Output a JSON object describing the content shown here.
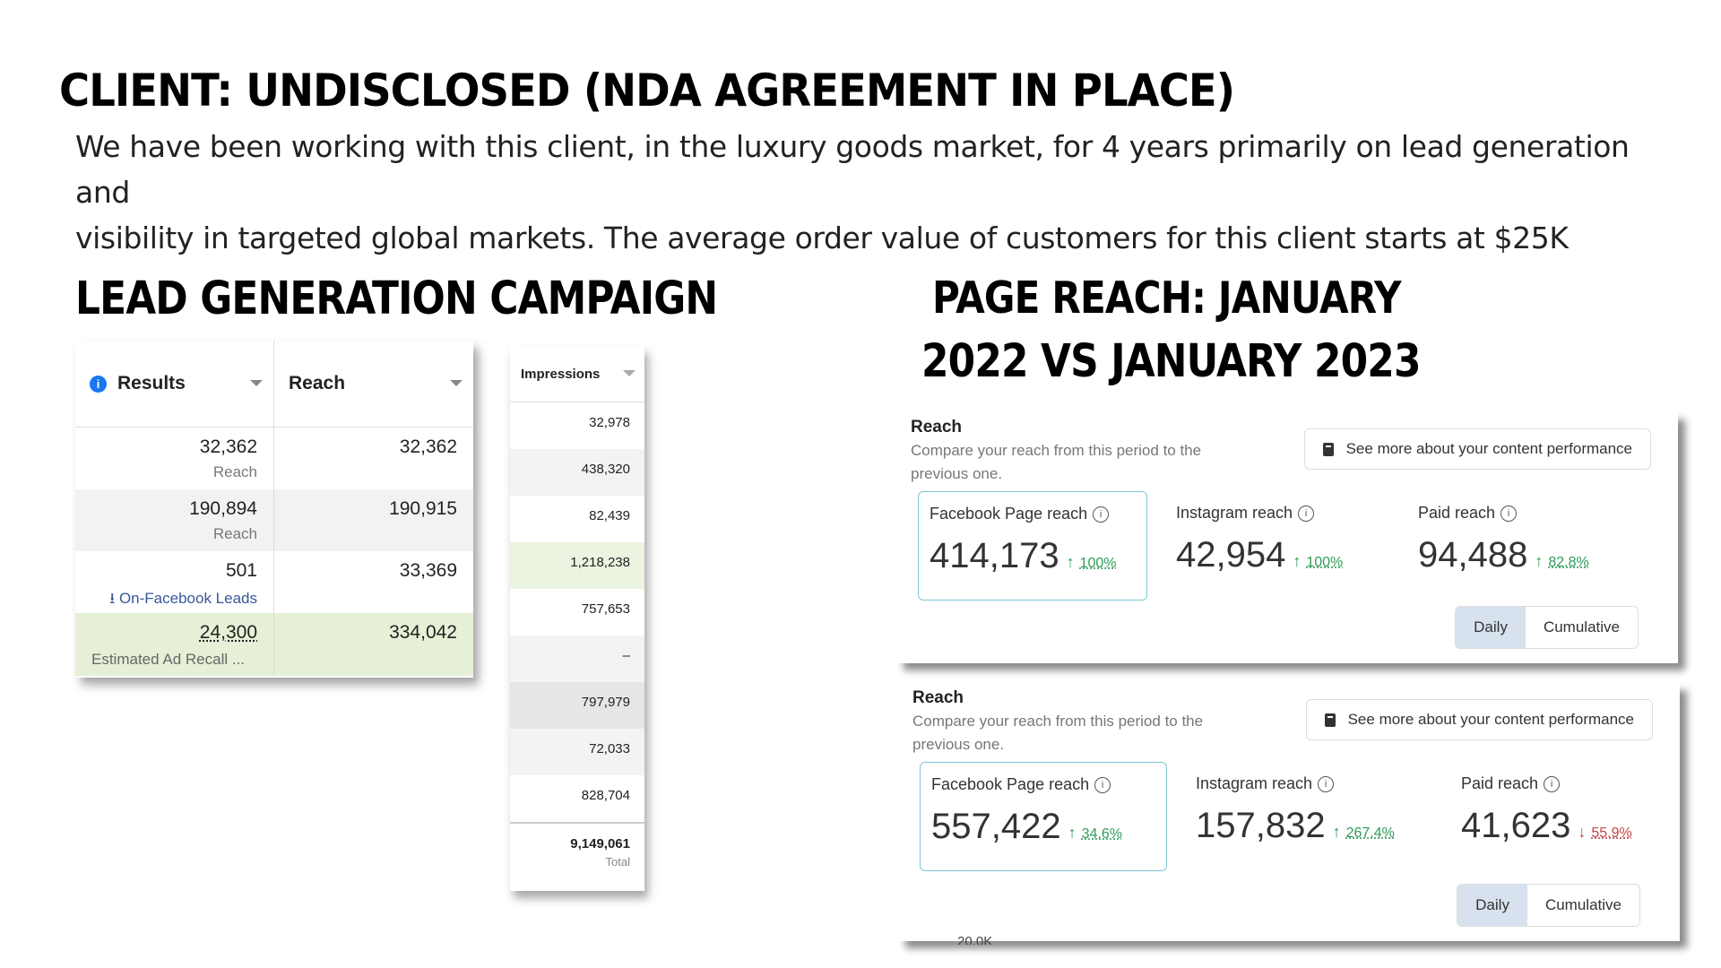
{
  "headings": {
    "client": "CLIENT: UNDISCLOSED (NDA AGREEMENT IN PLACE)",
    "lead": "LEAD GENERATION CAMPAIGN",
    "reach_line1": "PAGE REACH: JANUARY",
    "reach_line2": "2022 VS JANUARY 2023"
  },
  "intro": {
    "line1": "We have been working with this client, in the luxury goods market, for 4 years primarily on lead generation and",
    "line2": "visibility in targeted global markets.  The average order value of customers for this client starts at $25K"
  },
  "results_table": {
    "headers": {
      "results": "Results",
      "reach": "Reach"
    },
    "rows": [
      {
        "result": "32,362",
        "sub": "Reach",
        "reach": "32,362"
      },
      {
        "result": "190,894",
        "sub": "Reach",
        "reach": "190,915"
      },
      {
        "result": "501",
        "sub": "On-Facebook Leads",
        "reach": "33,369"
      },
      {
        "result": "24,300",
        "sub": "Estimated Ad Recall ...",
        "reach": "334,042"
      }
    ]
  },
  "impressions": {
    "header": "Impressions",
    "values": [
      "32,978",
      "438,320",
      "82,439",
      "1,218,238",
      "757,653",
      "–",
      "797,979",
      "72,033",
      "828,704"
    ],
    "total": "9,149,061",
    "total_label": "Total"
  },
  "cards": [
    {
      "title": "Reach",
      "desc": "Compare your reach from this period to the previous one.",
      "more": "See more about your content performance",
      "metrics": [
        {
          "label": "Facebook Page reach",
          "value": "414,173",
          "pct": "100%",
          "dir": "up"
        },
        {
          "label": "Instagram reach",
          "value": "42,954",
          "pct": "100%",
          "dir": "up"
        },
        {
          "label": "Paid reach",
          "value": "94,488",
          "pct": "82.8%",
          "dir": "up"
        }
      ],
      "toggle": {
        "daily": "Daily",
        "cumulative": "Cumulative"
      }
    },
    {
      "title": "Reach",
      "desc": "Compare your reach from this period to the previous one.",
      "more": "See more about your content performance",
      "metrics": [
        {
          "label": "Facebook Page reach",
          "value": "557,422",
          "pct": "34.6%",
          "dir": "up"
        },
        {
          "label": "Instagram reach",
          "value": "157,832",
          "pct": "267.4%",
          "dir": "up"
        },
        {
          "label": "Paid reach",
          "value": "41,623",
          "pct": "55.9%",
          "dir": "down"
        }
      ],
      "toggle": {
        "daily": "Daily",
        "cumulative": "Cumulative"
      },
      "axis_cut": "20.0K"
    }
  ],
  "glyphs": {
    "up": "↑",
    "down": "↓",
    "info": "i"
  }
}
